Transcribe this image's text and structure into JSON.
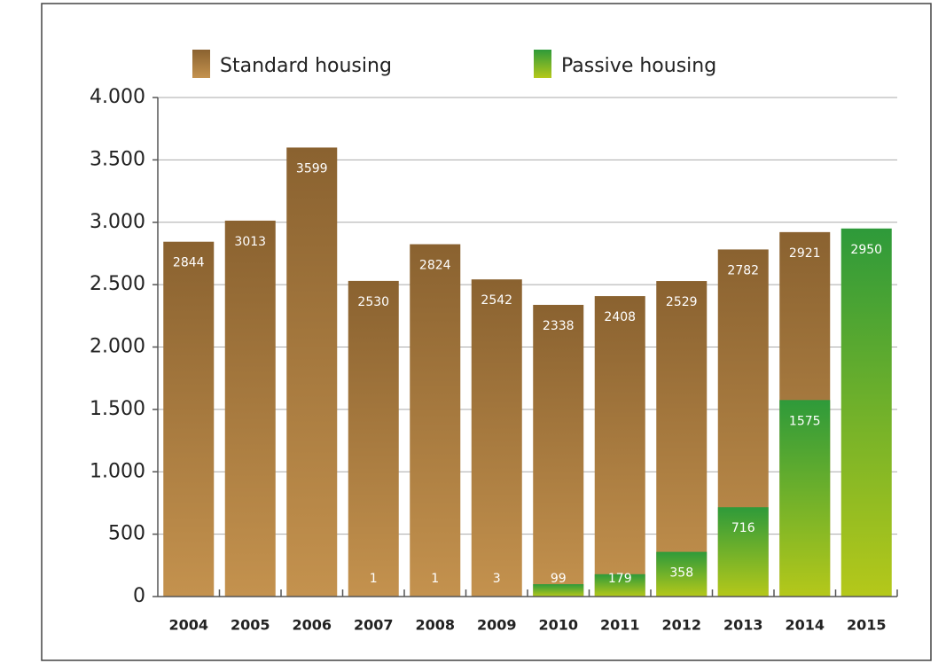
{
  "chart_data": {
    "type": "bar",
    "barmode": "overlay",
    "categories": [
      "2004",
      "2005",
      "2006",
      "2007",
      "2008",
      "2009",
      "2010",
      "2011",
      "2012",
      "2013",
      "2014",
      "2015"
    ],
    "series": [
      {
        "name": "Standard housing",
        "color": [
          "#8a6230",
          "#c4924e"
        ],
        "values": [
          2844,
          3013,
          3599,
          2530,
          2824,
          2542,
          2338,
          2408,
          2529,
          2782,
          2921,
          null
        ]
      },
      {
        "name": "Passive housing",
        "color": [
          "#2e9a3a",
          "#b5c81a"
        ],
        "values": [
          null,
          null,
          null,
          1,
          1,
          3,
          99,
          179,
          358,
          716,
          1575,
          2950
        ]
      }
    ],
    "ylim": [
      0,
      4000
    ],
    "yticks": [
      0,
      500,
      {
        "value": 1000,
        "label": "1.000"
      },
      {
        "value": 1500,
        "label": "1.500"
      },
      {
        "value": 2000,
        "label": "2.000"
      },
      {
        "value": 2500,
        "label": "2.500"
      },
      {
        "value": 3000,
        "label": "3.000"
      },
      {
        "value": 3500,
        "label": "3.500"
      },
      {
        "value": 4000,
        "label": "4.000"
      }
    ],
    "grid": true,
    "legend": "top"
  }
}
